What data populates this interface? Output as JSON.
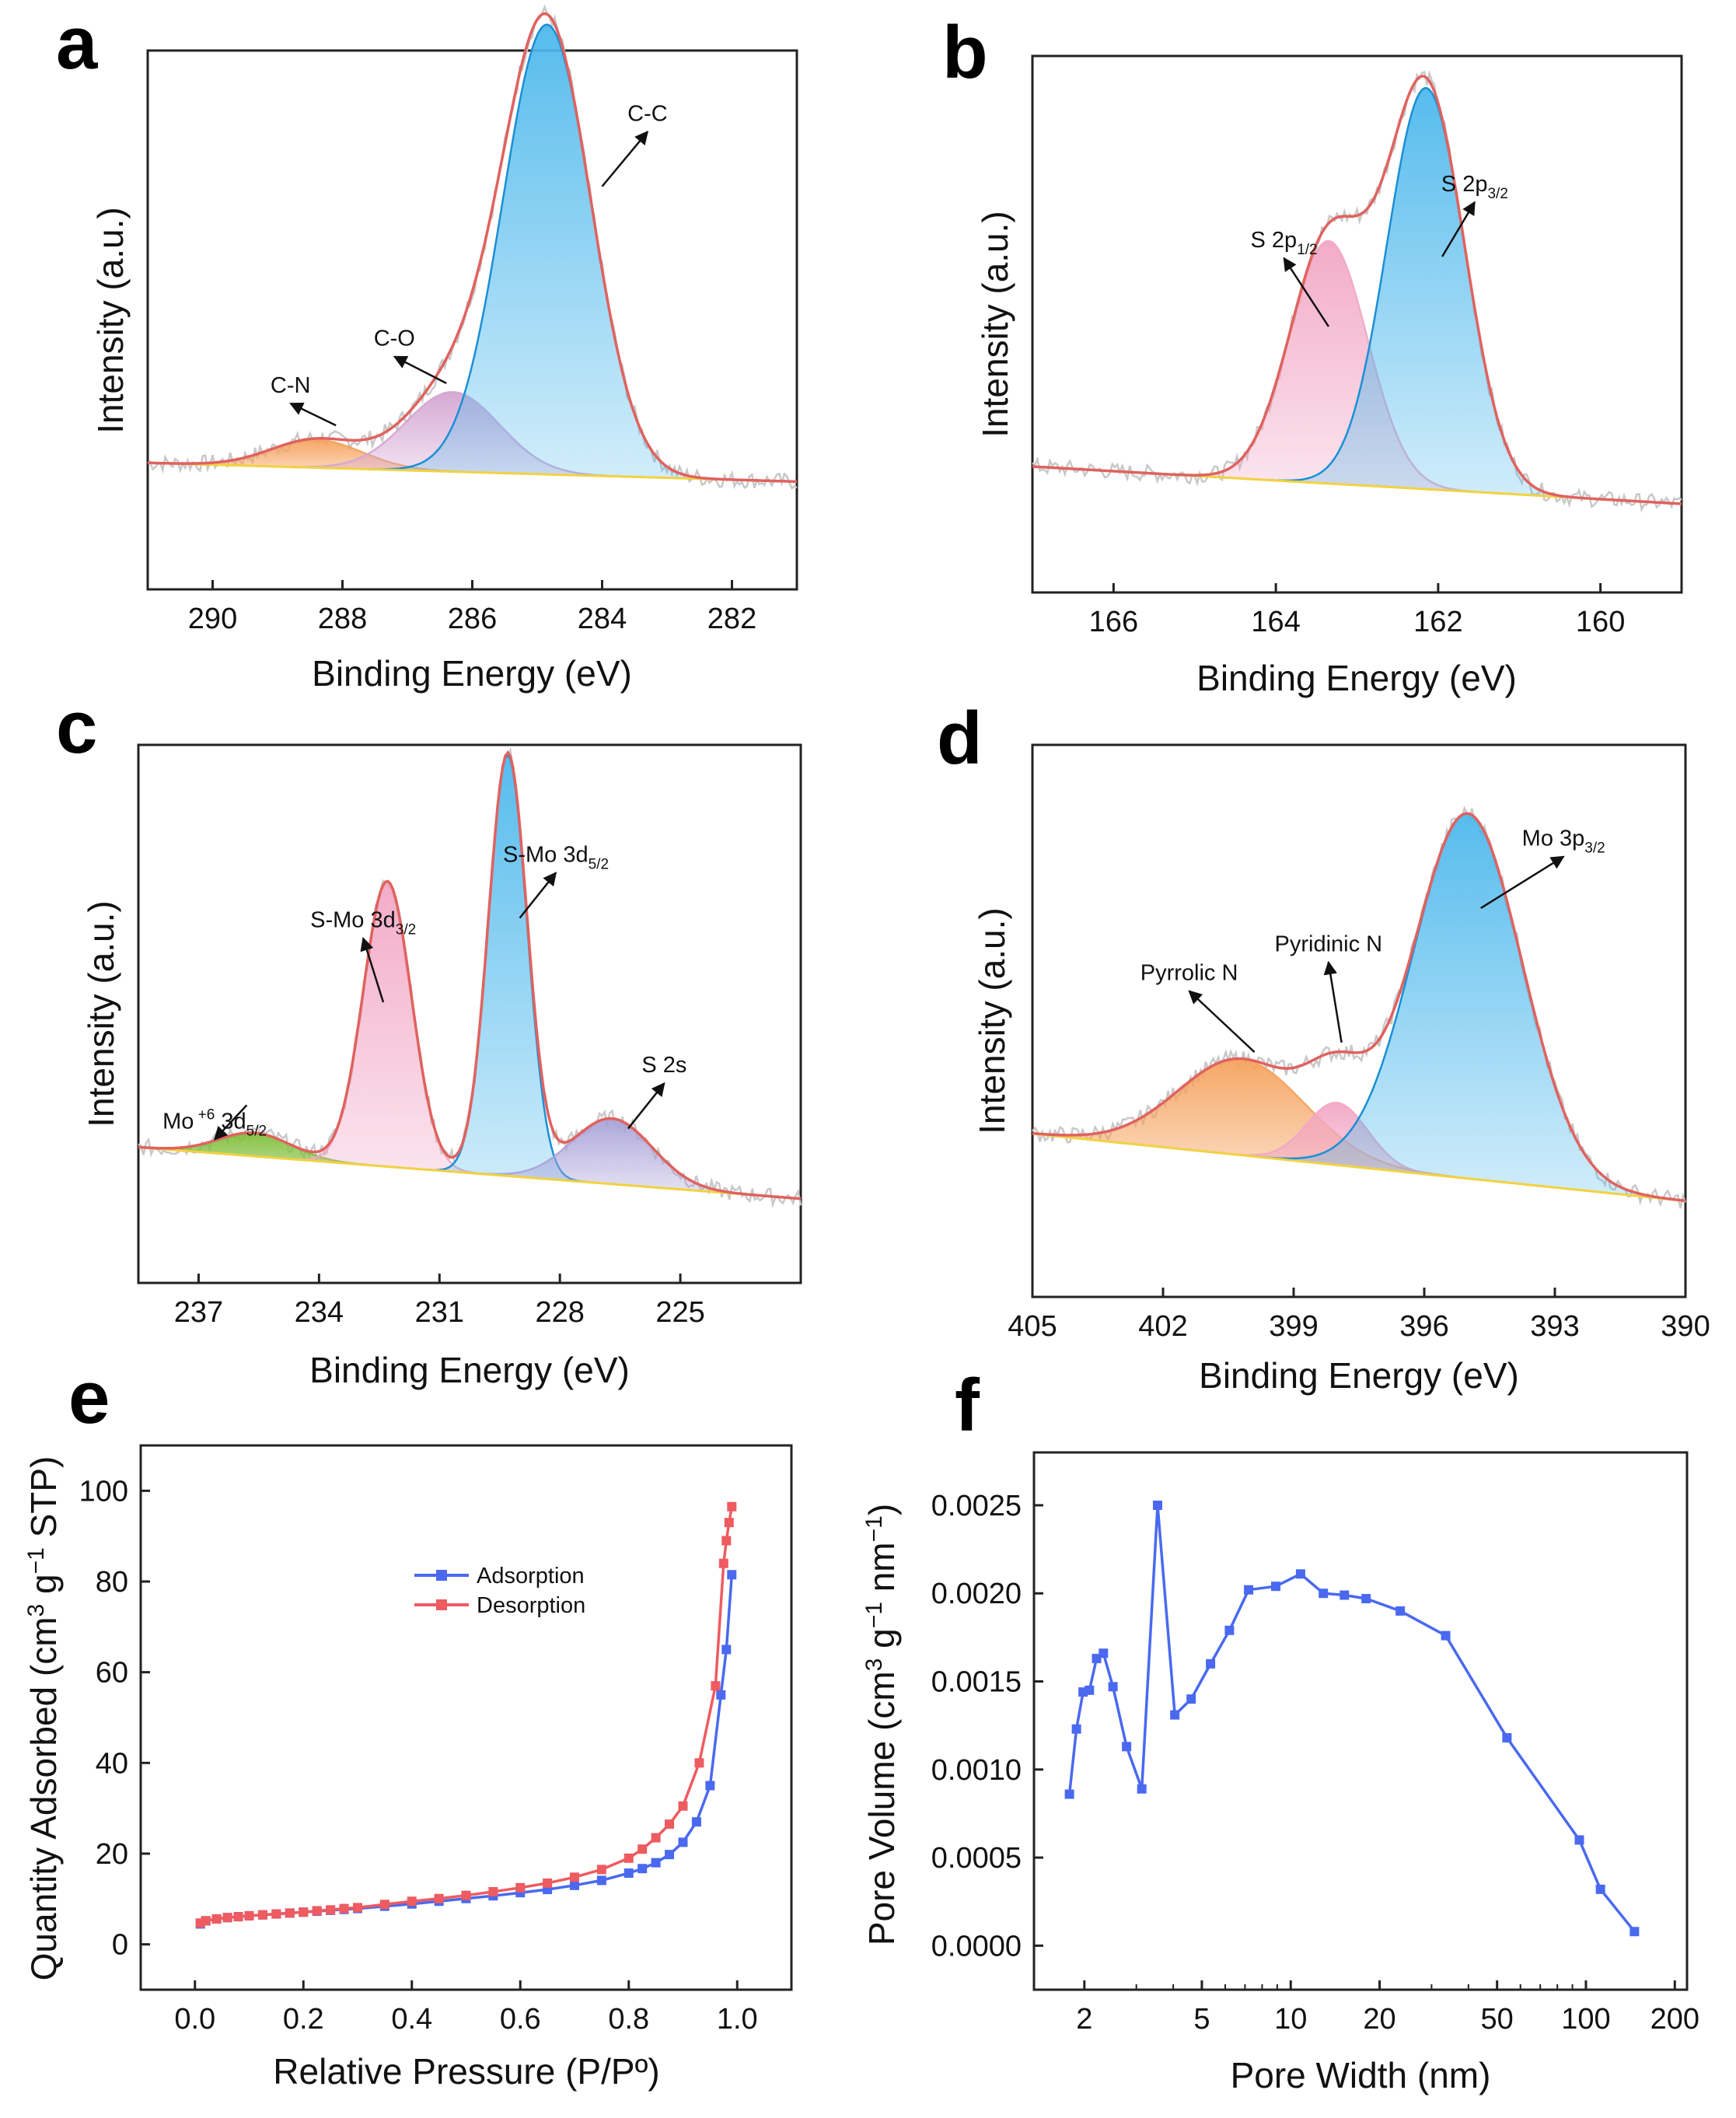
{
  "figure": {
    "panel_count": 6
  },
  "chart_data": [
    {
      "panel": "a",
      "type": "area",
      "xlabel": "Binding Energy (eV)",
      "ylabel": "Intensity (a.u.)",
      "xlim": [
        291,
        281
      ],
      "ylim": [
        0,
        1.15
      ],
      "xticks": [
        "290",
        "288",
        "286",
        "284",
        "282"
      ],
      "xtick_values": [
        290,
        288,
        286,
        284,
        282
      ],
      "baseline": {
        "left": 0.27,
        "right": 0.23
      },
      "components": [
        {
          "label": "C-N",
          "center": 288.4,
          "amp": 0.06,
          "sigma": 0.7,
          "color": "#f5a25d"
        },
        {
          "label": "C-O",
          "center": 286.3,
          "amp": 0.17,
          "sigma": 0.72,
          "color": "#d4a5d3"
        },
        {
          "label": "C-C",
          "center": 284.85,
          "amp": 0.96,
          "sigma": 0.68,
          "color": "#4db8ec"
        }
      ],
      "annotations": [
        {
          "text": "C-N",
          "x": 288.8,
          "y": 0.42,
          "ax": 288.1,
          "ay": 0.35
        },
        {
          "text": "C-O",
          "x": 287.2,
          "y": 0.52,
          "ax": 286.4,
          "ay": 0.44
        },
        {
          "text": "C-C",
          "x": 283.3,
          "y": 1.0,
          "ax": 284.0,
          "ay": 0.86
        }
      ]
    },
    {
      "panel": "b",
      "type": "area",
      "xlabel": "Binding Energy (eV)",
      "ylabel": "Intensity (a.u.)",
      "xlim": [
        167,
        159
      ],
      "ylim": [
        0,
        1.15
      ],
      "xticks": [
        "166",
        "164",
        "162",
        "160"
      ],
      "xtick_values": [
        166,
        164,
        162,
        160
      ],
      "baseline": {
        "left": 0.27,
        "right": 0.19
      },
      "components": [
        {
          "label": "S 2p",
          "sub": "1/2",
          "center": 163.35,
          "amp": 0.52,
          "sigma": 0.48,
          "color": "#f2a7c4"
        },
        {
          "label": "S 2p",
          "sub": "3/2",
          "center": 162.15,
          "amp": 0.86,
          "sigma": 0.48,
          "color": "#4db8ec"
        }
      ],
      "annotations": [
        {
          "text": "S 2p",
          "sub": "1/2",
          "x": 163.9,
          "y": 0.74,
          "ax": 163.35,
          "ay": 0.57
        },
        {
          "text": "S 2p",
          "sub": "3/2",
          "x": 161.55,
          "y": 0.86,
          "ax": 161.95,
          "ay": 0.72
        }
      ]
    },
    {
      "panel": "c",
      "type": "area",
      "xlabel": "Binding Energy (eV)",
      "ylabel": "Intensity (a.u.)",
      "xlim": [
        238.5,
        222
      ],
      "ylim": [
        0,
        1.15
      ],
      "xticks": [
        "237",
        "234",
        "231",
        "228",
        "225"
      ],
      "xtick_values": [
        237,
        234,
        231,
        228,
        225
      ],
      "baseline": {
        "left": 0.29,
        "right": 0.18
      },
      "components": [
        {
          "label": "Mo +6 3d5/2",
          "center": 235.6,
          "amp": 0.05,
          "sigma": 0.9,
          "color": "#7fbf3a"
        },
        {
          "label": "S-Mo 3d3/2",
          "center": 232.3,
          "amp": 0.61,
          "sigma": 0.6,
          "color": "#f2a7c4"
        },
        {
          "label": "S-Mo 3d5/2",
          "center": 229.3,
          "amp": 0.9,
          "sigma": 0.48,
          "color": "#4db8ec"
        },
        {
          "label": "S 2s",
          "center": 226.7,
          "amp": 0.14,
          "sigma": 1.0,
          "color": "#a9a2d8"
        }
      ],
      "annotations": [
        {
          "text": "Mo",
          "sup": "+6",
          "tail": "3d",
          "sub": "5/2",
          "x": 236.6,
          "y": 0.33,
          "ax": 235.8,
          "ay": 0.38
        },
        {
          "text": "S-Mo 3d",
          "sub": "3/2",
          "x": 232.9,
          "y": 0.76,
          "ax": 232.4,
          "ay": 0.6
        },
        {
          "text": "S-Mo 3d",
          "sub": "5/2",
          "x": 228.1,
          "y": 0.9,
          "ax": 229.0,
          "ay": 0.78
        },
        {
          "text": "S 2s",
          "x": 225.4,
          "y": 0.45,
          "ax": 226.3,
          "ay": 0.33
        }
      ]
    },
    {
      "panel": "d",
      "type": "area",
      "xlabel": "Binding Energy (eV)",
      "ylabel": "Intensity (a.u.)",
      "xlim": [
        405,
        390
      ],
      "ylim": [
        0,
        1.15
      ],
      "xticks": [
        "405",
        "402",
        "399",
        "396",
        "393",
        "390"
      ],
      "xtick_values": [
        405,
        402,
        399,
        396,
        393,
        390
      ],
      "baseline": {
        "left": 0.34,
        "right": 0.2
      },
      "components": [
        {
          "label": "Pyrrolic N",
          "center": 400.2,
          "amp": 0.2,
          "sigma": 1.45,
          "color": "#f5a25d"
        },
        {
          "label": "Pyridinic N",
          "center": 398.0,
          "amp": 0.13,
          "sigma": 0.7,
          "color": "#f2a7c4"
        },
        {
          "label": "Mo 3p",
          "sub": "3/2",
          "center": 395.0,
          "amp": 0.76,
          "sigma": 1.25,
          "color": "#4db8ec"
        }
      ],
      "annotations": [
        {
          "text": "Pyrrolic N",
          "x": 401.4,
          "y": 0.66,
          "ax": 399.9,
          "ay": 0.51
        },
        {
          "text": "Pyridinic N",
          "x": 398.2,
          "y": 0.72,
          "ax": 397.9,
          "ay": 0.53
        },
        {
          "text": "Mo 3p",
          "sub": "3/2",
          "x": 392.8,
          "y": 0.94,
          "ax": 394.7,
          "ay": 0.81
        }
      ]
    },
    {
      "panel": "e",
      "type": "line",
      "xlabel": "Relative Pressure (P/Pº)",
      "ylabel_parts": {
        "main": "Quantity Adsorbed (cm",
        "sup1": "3",
        "mid": " g",
        "sup2": "−1",
        "tail": " STP)"
      },
      "xlim": [
        -0.1,
        1.1
      ],
      "ylim": [
        -10,
        110
      ],
      "xticks": [
        "0.0",
        "0.2",
        "0.4",
        "0.6",
        "0.8",
        "1.0"
      ],
      "xtick_values": [
        0,
        0.2,
        0.4,
        0.6,
        0.8,
        1.0
      ],
      "yticks": [
        "0",
        "20",
        "40",
        "60",
        "80",
        "100"
      ],
      "ytick_values": [
        0,
        20,
        40,
        60,
        80,
        100
      ],
      "legend": [
        "Adsorption",
        "Desorption"
      ],
      "series": [
        {
          "name": "Adsorption",
          "color": "#4a69f0",
          "x": [
            0.01,
            0.02,
            0.04,
            0.06,
            0.08,
            0.1,
            0.125,
            0.15,
            0.175,
            0.2,
            0.225,
            0.25,
            0.275,
            0.3,
            0.35,
            0.4,
            0.45,
            0.5,
            0.55,
            0.6,
            0.65,
            0.7,
            0.75,
            0.8,
            0.825,
            0.85,
            0.875,
            0.9,
            0.925,
            0.95,
            0.97,
            0.98,
            0.99
          ],
          "y": [
            4.5,
            5.2,
            5.6,
            5.9,
            6.1,
            6.3,
            6.5,
            6.7,
            6.9,
            7.1,
            7.3,
            7.5,
            7.7,
            7.9,
            8.4,
            8.9,
            9.5,
            10.1,
            10.7,
            11.4,
            12.1,
            13.0,
            14.1,
            15.7,
            16.7,
            18.0,
            19.8,
            22.5,
            27,
            35,
            55,
            65,
            81.5
          ]
        },
        {
          "name": "Desorption",
          "color": "#ee5b60",
          "x": [
            0.99,
            0.985,
            0.98,
            0.975,
            0.96,
            0.93,
            0.9,
            0.875,
            0.85,
            0.825,
            0.8,
            0.75,
            0.7,
            0.65,
            0.6,
            0.55,
            0.5,
            0.45,
            0.4,
            0.35,
            0.3,
            0.275,
            0.25,
            0.225,
            0.2,
            0.175,
            0.15,
            0.125,
            0.1,
            0.08,
            0.06,
            0.04,
            0.02,
            0.01
          ],
          "y": [
            96.5,
            93,
            89,
            84,
            57,
            40,
            30.5,
            26.5,
            23.5,
            21,
            19,
            16.5,
            14.8,
            13.5,
            12.5,
            11.6,
            10.8,
            10.1,
            9.5,
            8.8,
            8.1,
            7.9,
            7.6,
            7.4,
            7.1,
            6.9,
            6.7,
            6.5,
            6.3,
            6.1,
            5.9,
            5.6,
            5.2,
            4.7
          ]
        }
      ]
    },
    {
      "panel": "f",
      "type": "line",
      "xlabel": "Pore Width (nm)",
      "ylabel_parts": {
        "main": "Pore Volume (cm",
        "sup1": "3",
        "mid": " g",
        "sup2": "−1",
        "tail": " nm",
        "sup3": "−1",
        "end": ")"
      },
      "xscale": "log",
      "xlim": [
        1.35,
        220
      ],
      "ylim": [
        -0.00025,
        0.0028
      ],
      "xticks": [
        "2",
        "5",
        "10",
        "20",
        "50",
        "100",
        "200"
      ],
      "xtick_values": [
        2,
        5,
        10,
        20,
        50,
        100,
        200
      ],
      "yticks": [
        "0.0000",
        "0.0005",
        "0.0010",
        "0.0015",
        "0.0020",
        "0.0025"
      ],
      "ytick_values": [
        0,
        0.0005,
        0.001,
        0.0015,
        0.002,
        0.0025
      ],
      "series": [
        {
          "name": "Pore Volume",
          "color": "#4a69f0",
          "x": [
            1.78,
            1.88,
            1.98,
            2.08,
            2.2,
            2.32,
            2.5,
            2.78,
            3.13,
            3.54,
            4.05,
            4.6,
            5.35,
            6.2,
            7.2,
            8.9,
            10.8,
            12.9,
            15.2,
            18.0,
            23.5,
            33.5,
            54,
            95,
            112,
            146
          ],
          "y": [
            0.00086,
            0.00123,
            0.00144,
            0.00145,
            0.00163,
            0.00166,
            0.00147,
            0.00113,
            0.00089,
            0.0025,
            0.00131,
            0.0014,
            0.0016,
            0.00179,
            0.00202,
            0.00204,
            0.00211,
            0.002,
            0.00199,
            0.00197,
            0.0019,
            0.00176,
            0.00118,
            0.0006,
            0.00032,
            8e-05
          ]
        }
      ]
    }
  ]
}
